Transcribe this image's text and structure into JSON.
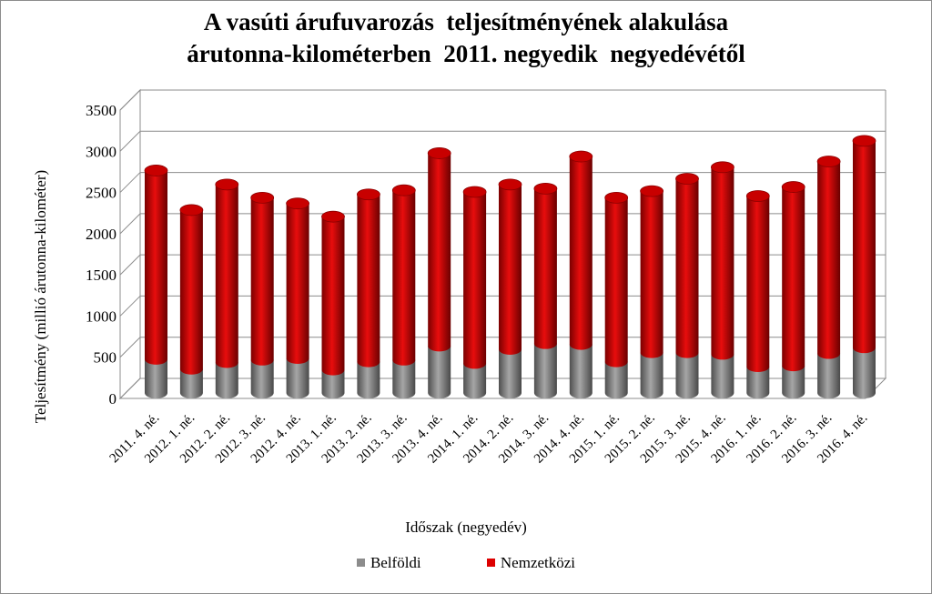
{
  "chart_data": {
    "type": "bar",
    "stacked": true,
    "three_d": true,
    "title": [
      "A vasúti árufuvarozás  teljesítményének alakulása",
      "árutonna-kilométerben  2011. negyedik  negyedévétől"
    ],
    "xlabel": "Időszak (negyedév)",
    "ylabel": "Teljesítmény  (millió árutonna-kilométer)",
    "ylim": [
      0,
      3500
    ],
    "yticks": [
      0,
      500,
      1000,
      1500,
      2000,
      2500,
      3000,
      3500
    ],
    "grid": true,
    "legend_position": "bottom",
    "categories": [
      "2011. 4. né.",
      "2012. 1. né.",
      "2012. 2. né.",
      "2012. 3. né.",
      "2012. 4. né.",
      "2013. 1. né.",
      "2013. 2. né.",
      "2013. 3. né.",
      "2013. 4. né.",
      "2014. 1. né.",
      "2014. 2. né.",
      "2014. 3. né.",
      "2014. 4. né.",
      "2015. 1. né.",
      "2015. 2. né.",
      "2015. 3. né.",
      "2015. 4. né.",
      "2016. 1. né.",
      "2016. 2. né.",
      "2016. 3. né.",
      "2016. 4. né."
    ],
    "series": [
      {
        "name": "Belföldi",
        "color": "#8c8c8c",
        "values": [
          410,
          290,
          370,
          400,
          420,
          280,
          380,
          400,
          570,
          360,
          530,
          600,
          590,
          380,
          490,
          490,
          470,
          320,
          330,
          480,
          550
        ]
      },
      {
        "name": "Nemzetközi",
        "color": "#dd0000",
        "values": [
          2290,
          1930,
          2160,
          1970,
          1880,
          1860,
          2030,
          2060,
          2340,
          2080,
          2000,
          1880,
          2280,
          1990,
          1960,
          2110,
          2270,
          2070,
          2170,
          2330,
          2510
        ]
      }
    ]
  }
}
